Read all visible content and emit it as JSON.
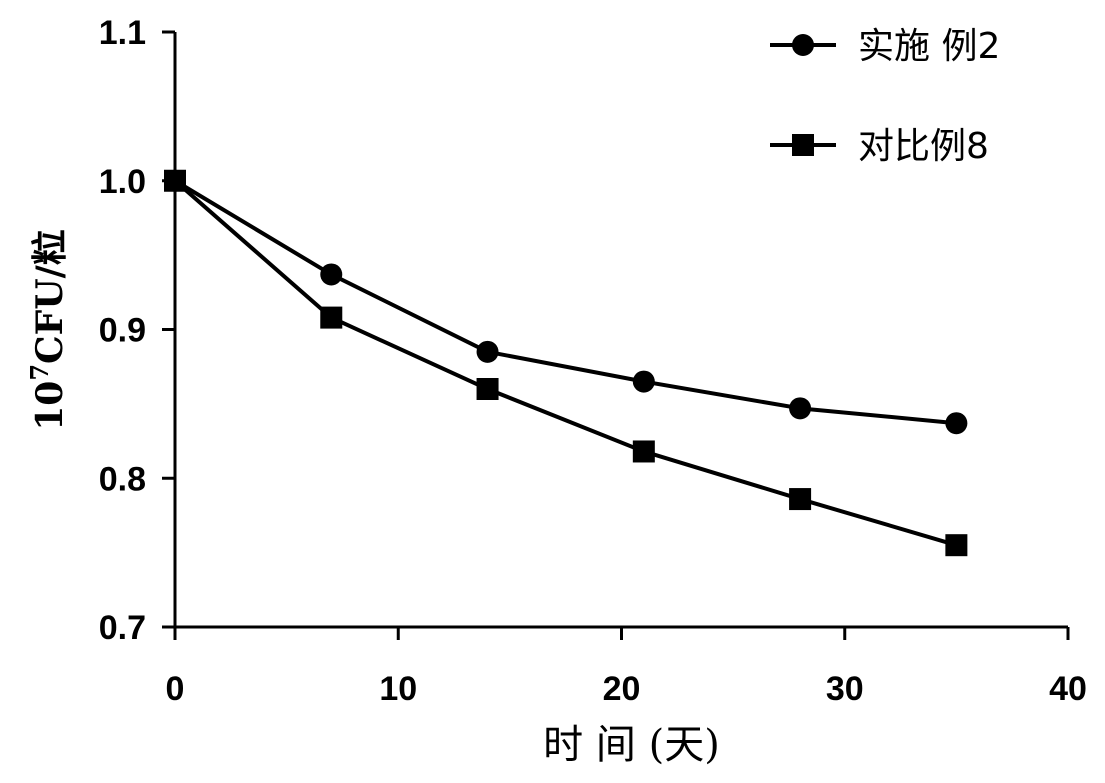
{
  "chart_data": {
    "type": "line",
    "title": "",
    "xlabel": "时 间 (天)",
    "ylabel_base": "10",
    "ylabel_sup": "7",
    "ylabel_rest": "CFU/粒",
    "xlim": [
      0,
      40
    ],
    "ylim": [
      0.7,
      1.1
    ],
    "x_ticks": [
      0,
      10,
      20,
      30,
      40
    ],
    "x_tick_labels": [
      "0",
      "10",
      "20",
      "30",
      "40"
    ],
    "y_ticks": [
      0.7,
      0.8,
      0.9,
      1.0,
      1.1
    ],
    "y_tick_labels": [
      "0.7",
      "0.8",
      "0.9",
      "1.0",
      "1.1"
    ],
    "grid": false,
    "legend_position": "top-right",
    "series": [
      {
        "name": "实施 例2",
        "marker": "circle",
        "color": "#000000",
        "x": [
          0,
          7,
          14,
          21,
          28,
          35
        ],
        "y": [
          1.0,
          0.937,
          0.885,
          0.865,
          0.847,
          0.837
        ]
      },
      {
        "name": "对比例8",
        "marker": "square",
        "color": "#000000",
        "x": [
          0,
          7,
          14,
          21,
          28,
          35
        ],
        "y": [
          1.0,
          0.908,
          0.86,
          0.818,
          0.786,
          0.755
        ]
      }
    ]
  }
}
